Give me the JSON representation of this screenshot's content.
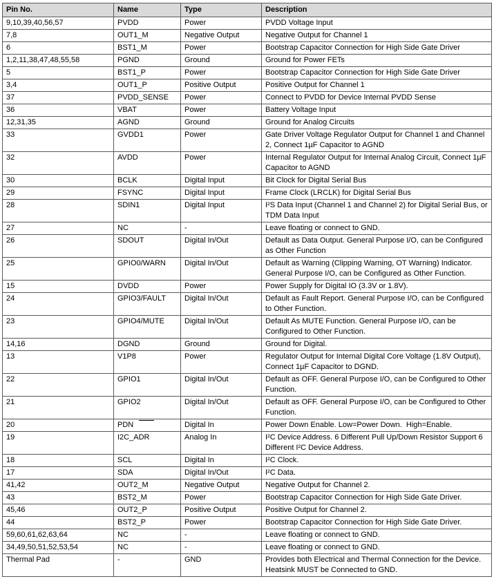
{
  "table": {
    "header_bg_color": "#d9d9d9",
    "border_color": "#595959",
    "columns": [
      "Pin No.",
      "Name",
      "Type",
      "Description"
    ],
    "rows": [
      {
        "pin": "9,10,39,40,56,57",
        "name": "PVDD",
        "type": "Power",
        "desc": "PVDD Voltage Input"
      },
      {
        "pin": "7,8",
        "name": "OUT1_M",
        "type": "Negative Output",
        "desc": "Negative Output for Channel 1"
      },
      {
        "pin": "6",
        "name": "BST1_M",
        "type": "Power",
        "desc": "Bootstrap Capacitor Connection for High Side Gate Driver"
      },
      {
        "pin": "1,2,11,38,47,48,55,58",
        "name": "PGND",
        "type": "Ground",
        "desc": "Ground for Power FETs"
      },
      {
        "pin": "5",
        "name": "BST1_P",
        "type": "Power",
        "desc": "Bootstrap Capacitor Connection for High Side Gate Driver"
      },
      {
        "pin": "3,4",
        "name": "OUT1_P",
        "type": "Positive Output",
        "desc": "Positive Output for Channel 1"
      },
      {
        "pin": "37",
        "name": "PVDD_SENSE",
        "type": "Power",
        "desc": "Connect to PVDD for Device Internal PVDD Sense"
      },
      {
        "pin": "36",
        "name": "VBAT",
        "type": "Power",
        "desc": "Battery Voltage Input"
      },
      {
        "pin": "12,31,35",
        "name": "AGND",
        "type": "Ground",
        "desc": "Ground for Analog Circuits"
      },
      {
        "pin": "33",
        "name": "GVDD1",
        "type": "Power",
        "desc": "Gate Driver Voltage Regulator Output for Channel 1 and Channel 2, Connect 1µF Capacitor to AGND"
      },
      {
        "pin": "32",
        "name": "AVDD",
        "type": "Power",
        "desc": "Internal Regulator Output for Internal Analog Circuit, Connect 1µF Capacitor to AGND"
      },
      {
        "pin": "30",
        "name": "BCLK",
        "type": "Digital Input",
        "desc": "Bit Clock for Digital Serial Bus"
      },
      {
        "pin": "29",
        "name": "FSYNC",
        "type": "Digital Input",
        "desc": "Frame Clock (LRCLK) for Digital Serial Bus"
      },
      {
        "pin": "28",
        "name": "SDIN1",
        "type": "Digital Input",
        "desc": "I²S Data Input (Channel 1 and Channel 2) for Digital Serial Bus, or TDM Data Input"
      },
      {
        "pin": "27",
        "name": "NC",
        "type": "-",
        "desc": "Leave floating or connect to GND."
      },
      {
        "pin": "26",
        "name": "SDOUT",
        "type": "Digital In/Out",
        "desc": "Default as Data Output. General Purpose I/O, can be Configured as Other Function"
      },
      {
        "pin": "25",
        "name": "GPIO0/WARN",
        "type": "Digital In/Out",
        "desc": "Default as Warning (Clipping Warning, OT Warning) Indicator. General Purpose I/O, can be Configured as Other Function."
      },
      {
        "pin": "15",
        "name": "DVDD",
        "type": "Power",
        "desc": "Power Supply for Digital IO (3.3V or 1.8V)."
      },
      {
        "pin": "24",
        "name": "GPIO3/FAULT",
        "type": "Digital In/Out",
        "desc": "Default as Fault Report. General Purpose I/O, can be Configured to Other Function."
      },
      {
        "pin": "23",
        "name": "GPIO4/MUTE",
        "type": "Digital In/Out",
        "desc": "Default As MUTE Function. General Purpose I/O, can be Configured to Other Function."
      },
      {
        "pin": "14,16",
        "name": "DGND",
        "type": "Ground",
        "desc": "Ground for Digital."
      },
      {
        "pin": "13",
        "name": "V1P8",
        "type": "Power",
        "desc": "Regulator Output for Internal Digital Core Voltage (1.8V Output), Connect 1µF Capacitor to DGND."
      },
      {
        "pin": "22",
        "name": "GPIO1",
        "type": "Digital In/Out",
        "desc": "Default as OFF. General Purpose I/O, can be Configured to Other Function."
      },
      {
        "pin": "21",
        "name": "GPIO2",
        "type": "Digital In/Out",
        "desc": "Default as OFF. General Purpose I/O, can be Configured to Other Function."
      },
      {
        "pin": "20",
        "name": "PDN",
        "overline": true,
        "type": "Digital In",
        "desc": "Power Down Enable. Low=Power Down.  High=Enable."
      },
      {
        "pin": "19",
        "name": "I2C_ADR",
        "type": "Analog In",
        "desc": "I²C Device Address. 6 Different Pull Up/Down Resistor Support 6 Different I²C Device Address."
      },
      {
        "pin": "18",
        "name": "SCL",
        "type": "Digital In",
        "desc": "I²C Clock."
      },
      {
        "pin": "17",
        "name": "SDA",
        "type": "Digital In/Out",
        "desc": "I²C Data."
      },
      {
        "pin": "41,42",
        "name": "OUT2_M",
        "type": "Negative Output",
        "desc": "Negative Output for Channel 2."
      },
      {
        "pin": "43",
        "name": "BST2_M",
        "type": "Power",
        "desc": "Bootstrap Capacitor Connection for High Side Gate Driver."
      },
      {
        "pin": "45,46",
        "name": "OUT2_P",
        "type": "Positive Output",
        "desc": "Positive Output for Channel 2."
      },
      {
        "pin": "44",
        "name": "BST2_P",
        "type": "Power",
        "desc": "Bootstrap Capacitor Connection for High Side Gate Driver."
      },
      {
        "pin": "59,60,61,62,63,64",
        "name": "NC",
        "type": "-",
        "desc": "Leave floating or connect to GND."
      },
      {
        "pin": "34,49,50,51,52,53,54",
        "name": "NC",
        "type": "-",
        "desc": "Leave floating or connect to GND."
      },
      {
        "pin": "Thermal Pad",
        "name": "-",
        "type": "GND",
        "desc": "Provides both Electrical and Thermal Connection for the Device. Heatsink MUST be Connected to GND."
      }
    ]
  }
}
